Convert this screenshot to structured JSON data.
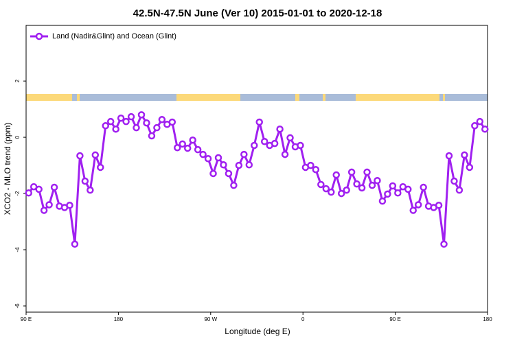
{
  "chart_data": {
    "type": "line",
    "title": "42.5N-47.5N June (Ver 10)   2015-01-01 to 2020-12-18",
    "x_label": "Longitude (deg E)",
    "y_label": "XCO2 - MLO trend (ppm)",
    "legend_position": "top-left",
    "xlim": [
      90,
      540
    ],
    "ylim": [
      -6.22,
      3.98
    ],
    "xticks": [
      {
        "value": 90,
        "label": "90 E"
      },
      180,
      {
        "value": 270,
        "label": "90 W"
      },
      {
        "value": 360,
        "label": "0"
      },
      {
        "value": 450,
        "label": "90 E"
      },
      {
        "value": 540,
        "label": "180"
      }
    ],
    "yticks": [
      -6,
      -4,
      -2,
      0,
      2
    ],
    "x": [
      92.5,
      97.5,
      102.5,
      107.5,
      112.5,
      117.5,
      122.5,
      127.5,
      132.5,
      137.5,
      142.5,
      147.5,
      152.5,
      157.5,
      162.5,
      167.5,
      172.5,
      177.5,
      182.5,
      187.5,
      192.5,
      197.5,
      202.5,
      207.5,
      212.5,
      217.5,
      222.5,
      227.5,
      232.5,
      237.5,
      242.5,
      247.5,
      252.5,
      257.5,
      262.5,
      267.5,
      272.5,
      277.5,
      282.5,
      287.5,
      292.5,
      297.5,
      302.5,
      307.5,
      312.5,
      317.5,
      322.5,
      327.5,
      332.5,
      337.5,
      342.5,
      347.5,
      352.5,
      357.5,
      362.5,
      367.5,
      372.5,
      377.5,
      382.5,
      387.5,
      392.5,
      397.5,
      402.5,
      407.5,
      412.5,
      417.5,
      422.5,
      427.5,
      432.5,
      437.5,
      442.5,
      447.5,
      452.5,
      457.5,
      462.5,
      467.5,
      472.5,
      477.5,
      482.5,
      487.5,
      492.5,
      497.5,
      502.5,
      507.5,
      512.5,
      517.5,
      522.5,
      527.5,
      532.5,
      537.5
    ],
    "series": [
      {
        "name": "Land (Nadir&Glint) and Ocean (Glint)",
        "color": "#a020f0",
        "values": [
          -1.98,
          -1.76,
          -1.85,
          -2.6,
          -2.4,
          -1.78,
          -2.45,
          -2.5,
          -2.42,
          -3.8,
          -0.66,
          -1.56,
          -1.88,
          -0.63,
          -1.07,
          0.41,
          0.56,
          0.29,
          0.68,
          0.56,
          0.73,
          0.34,
          0.8,
          0.51,
          0.05,
          0.34,
          0.63,
          0.46,
          0.54,
          -0.37,
          -0.24,
          -0.39,
          -0.1,
          -0.44,
          -0.61,
          -0.76,
          -1.29,
          -0.73,
          -0.98,
          -1.29,
          -1.71,
          -1.0,
          -0.61,
          -0.98,
          -0.29,
          0.54,
          -0.15,
          -0.29,
          -0.22,
          0.29,
          -0.61,
          -0.02,
          -0.34,
          -0.29,
          -1.07,
          -1.0,
          -1.15,
          -1.68,
          -1.83,
          -1.95,
          -1.34,
          -2.0,
          -1.88,
          -1.24,
          -1.66,
          -1.8,
          -1.24,
          -1.71,
          -1.54,
          -2.27,
          -2.02,
          -1.73,
          -1.98,
          -1.76,
          -1.85,
          -2.6,
          -2.4,
          -1.78,
          -2.45,
          -2.5,
          -2.42,
          -3.8,
          -0.66,
          -1.56,
          -1.88,
          -0.63,
          -1.07,
          0.41,
          0.56,
          0.29
        ]
      }
    ]
  }
}
